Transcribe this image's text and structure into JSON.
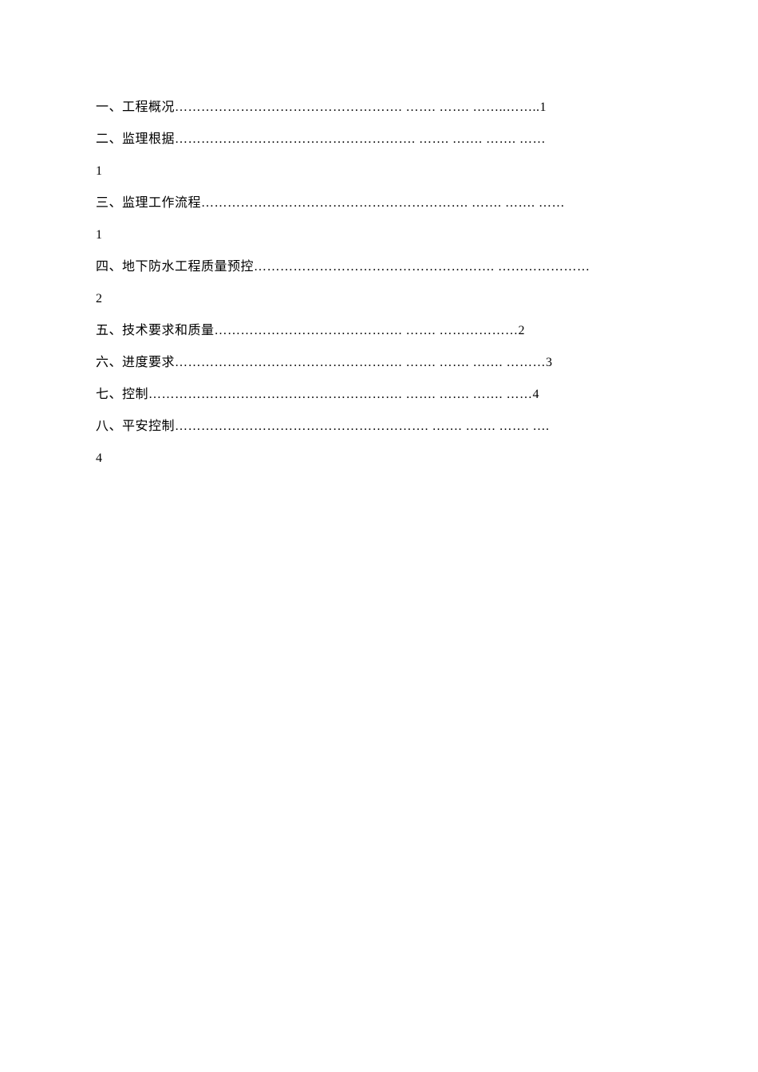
{
  "toc": {
    "entries": [
      {
        "text": "一、工程概况……………………………………………. ……. ……. ……..……..1"
      },
      {
        "text": "二、监理根据………………………………………………. ……. ……. ……. ……"
      },
      {
        "text": "1",
        "standalone": true
      },
      {
        "text": "三、监理工作流程……………………………………………………. ……. ……. ……"
      },
      {
        "text": "1",
        "standalone": true
      },
      {
        "text": "四、地下防水工程质量预控………………………………………………. …………………"
      },
      {
        "text": "2",
        "standalone": true
      },
      {
        "text": "五、技术要求和质量……………………………………. ……. ………………2"
      },
      {
        "text": "六、进度要求……………………………………………. ……. ……. ……. ………3"
      },
      {
        "text": "七、控制…………………………………………………. ……. ……. ……. ……4"
      },
      {
        "text": "八、平安控制…………………………………………………. ……. ……. ……. …."
      },
      {
        "text": "4",
        "standalone": true
      }
    ]
  },
  "style": {
    "font_size": 16,
    "line_height": 2.5,
    "text_color": "#000000",
    "background_color": "#ffffff",
    "font_family": "SimSun"
  }
}
